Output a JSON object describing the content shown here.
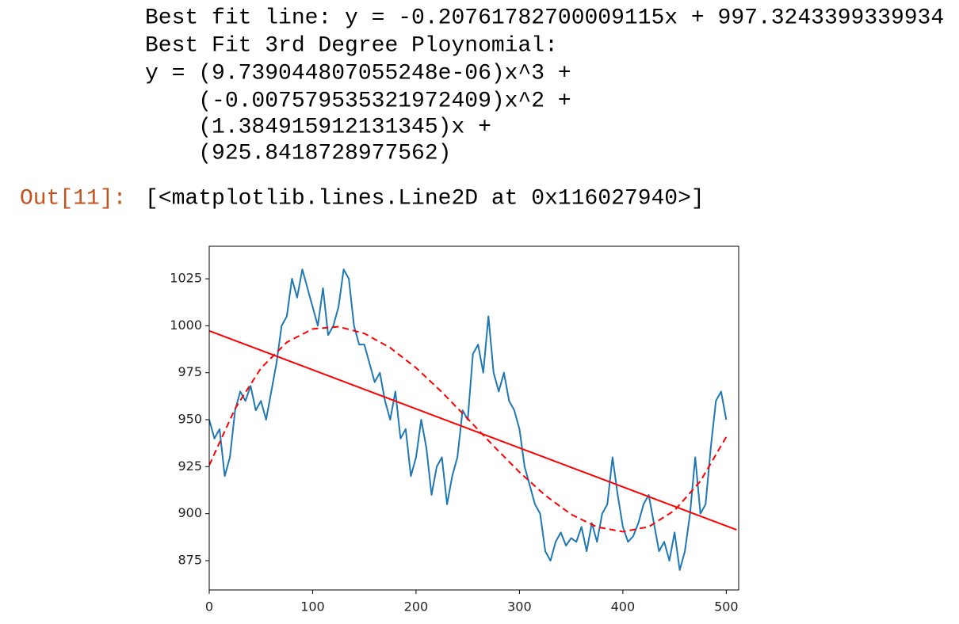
{
  "output_lines": [
    "Best fit line: y = -0.20761782700009115x + 997.3243399339934",
    "Best Fit 3rd Degree Ploynomial:",
    "y = (9.739044807055248e-06)x^3 +",
    "    (-0.007579535321972409)x^2 +",
    "    (1.384915912131345)x +",
    "    (925.8418728977562)"
  ],
  "out_prompt": "Out[11]:",
  "out_text": "[<matplotlib.lines.Line2D at 0x116027940>]",
  "chart_data": {
    "type": "line",
    "xlim": [
      0,
      512
    ],
    "ylim": [
      859.4,
      1042.3
    ],
    "xticks": [
      0,
      100,
      200,
      300,
      400,
      500
    ],
    "yticks": [
      875,
      900,
      925,
      950,
      975,
      1000,
      1025
    ],
    "grid": false,
    "series": [
      {
        "color": "#1f77b4",
        "style": "solid",
        "x": [
          0,
          5,
          10,
          15,
          20,
          25,
          30,
          35,
          40,
          45,
          50,
          55,
          60,
          65,
          70,
          75,
          80,
          85,
          90,
          95,
          100,
          105,
          110,
          115,
          120,
          125,
          130,
          135,
          140,
          145,
          150,
          155,
          160,
          165,
          170,
          175,
          180,
          185,
          190,
          195,
          200,
          205,
          210,
          215,
          220,
          225,
          230,
          235,
          240,
          245,
          250,
          255,
          260,
          265,
          270,
          275,
          280,
          285,
          290,
          295,
          300,
          305,
          310,
          315,
          320,
          325,
          330,
          335,
          340,
          345,
          350,
          355,
          360,
          365,
          370,
          375,
          380,
          385,
          390,
          395,
          400,
          405,
          410,
          415,
          420,
          425,
          430,
          435,
          440,
          445,
          450,
          455,
          460,
          465,
          470,
          475,
          480,
          485,
          490,
          495,
          500
        ],
        "values": [
          950,
          940,
          945,
          920,
          930,
          955,
          965,
          960,
          968,
          955,
          960,
          950,
          965,
          980,
          1000,
          1005,
          1025,
          1015,
          1030,
          1020,
          1010,
          1000,
          1020,
          995,
          1000,
          1010,
          1030,
          1025,
          1000,
          990,
          990,
          980,
          970,
          975,
          960,
          950,
          965,
          940,
          945,
          920,
          930,
          950,
          935,
          910,
          925,
          930,
          905,
          920,
          930,
          955,
          950,
          985,
          990,
          975,
          1005,
          975,
          965,
          975,
          960,
          955,
          945,
          925,
          915,
          905,
          900,
          880,
          875,
          885,
          890,
          883,
          887,
          885,
          893,
          880,
          895,
          885,
          900,
          905,
          930,
          910,
          893,
          885,
          888,
          895,
          905,
          910,
          895,
          880,
          885,
          875,
          890,
          870,
          880,
          900,
          930,
          900,
          905,
          935,
          960,
          965,
          950
        ]
      },
      {
        "color": "#ff0000",
        "style": "solid",
        "x": [
          0,
          510
        ],
        "values": [
          997.3,
          891.4
        ]
      },
      {
        "color": "#ff0000",
        "style": "dashed",
        "x": [
          0,
          25,
          50,
          75,
          100,
          125,
          150,
          175,
          200,
          225,
          250,
          275,
          300,
          325,
          350,
          375,
          400,
          425,
          450,
          475,
          500
        ],
        "values": [
          925.8,
          955.9,
          977.4,
          991.2,
          998.3,
          999.5,
          995.9,
          988.3,
          977.6,
          964.7,
          950.5,
          936.0,
          922.1,
          909.7,
          899.6,
          892.9,
          890.4,
          893.0,
          901.7,
          917.3,
          940.8
        ]
      }
    ]
  }
}
